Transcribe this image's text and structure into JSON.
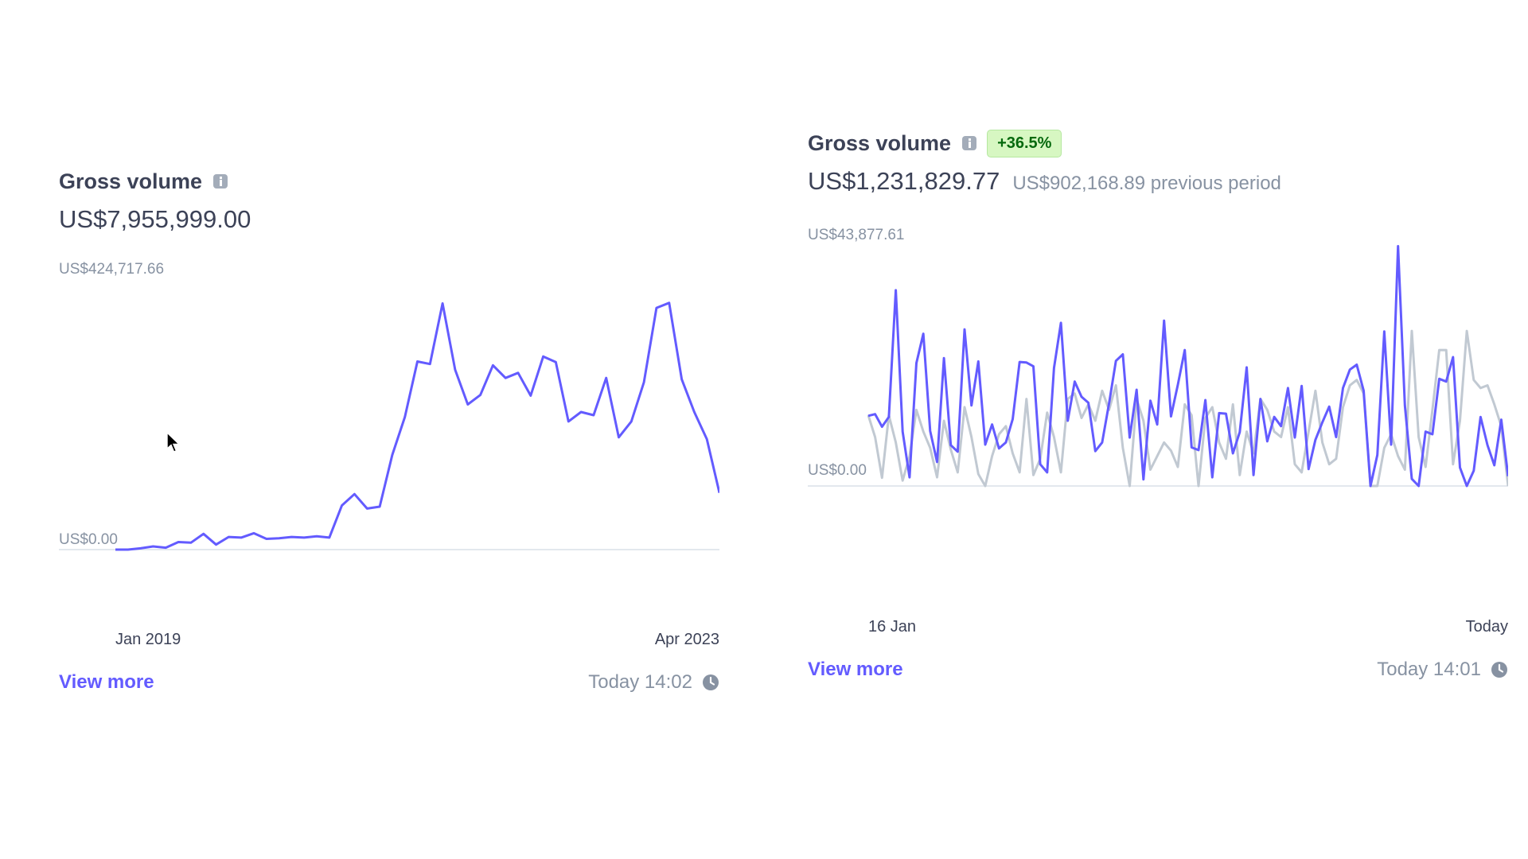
{
  "left_card": {
    "title": "Gross volume",
    "amount": "US$7,955,999.00",
    "view_more": "View more",
    "updated": "Today 14:02",
    "clock_icon": "clock-icon",
    "info_icon": "info-icon"
  },
  "right_card": {
    "title": "Gross volume",
    "badge": "+36.5%",
    "amount": "US$1,231,829.77",
    "previous": "US$902,168.89 previous period",
    "view_more": "View more",
    "updated": "Today 14:01",
    "clock_icon": "clock-icon",
    "info_icon": "info-icon"
  },
  "colors": {
    "accent": "#635bff",
    "previous_series": "#c1c9d2",
    "badge_bg": "#d7f7c2",
    "badge_text": "#05690d"
  },
  "chart_data": [
    {
      "type": "line",
      "title": "",
      "ymax_label": "US$424,717.66",
      "ymin_label": "US$0.00",
      "xlabels": [
        "Jan 2019",
        "Apr 2023"
      ],
      "ylim": [
        0,
        424717.66
      ],
      "series": [
        {
          "values": [
            0,
            0,
            2000,
            5000,
            3000,
            12000,
            11000,
            25000,
            8000,
            20000,
            19000,
            26000,
            17000,
            18000,
            20000,
            19000,
            21000,
            19000,
            70000,
            88000,
            65000,
            68000,
            150000,
            210000,
            298000,
            294000,
            390000,
            285000,
            230000,
            245000,
            292000,
            272000,
            280000,
            244000,
            306000,
            297000,
            203000,
            218000,
            213000,
            272000,
            178000,
            203000,
            265000,
            383000,
            391000,
            270000,
            218000,
            175000,
            90000
          ]
        }
      ]
    },
    {
      "type": "line",
      "title": "",
      "ymax_label": "US$43,877.61",
      "ymin_label": "US$0.00",
      "xlabels": [
        "16 Jan",
        "Today"
      ],
      "ylim": [
        0,
        43877.61
      ],
      "series": [
        {
          "values": [
            12900,
            13200,
            10900,
            12700,
            36000,
            10000,
            1600,
            22600,
            28000,
            10100,
            4400,
            23500,
            7500,
            6300,
            28800,
            14800,
            22900,
            7600,
            11300,
            6900,
            8000,
            12300,
            22800,
            22700,
            22000,
            4000,
            2500,
            21700,
            30000,
            12000,
            19200,
            16400,
            15300,
            6400,
            8000,
            15200,
            23000,
            24200,
            8900,
            17700,
            1200,
            15700,
            11300,
            30400,
            12800,
            18600,
            25000,
            7100,
            6600,
            15800,
            1600,
            13400,
            13300,
            6000,
            9900,
            21800,
            2000,
            16000,
            8200,
            12700,
            11000,
            18000,
            8900,
            18400,
            3100,
            8500,
            11700,
            14600,
            9000,
            18000,
            21400,
            22300,
            17500,
            0,
            5700,
            28400,
            7600,
            44100,
            14800,
            1300,
            0,
            10000,
            9500,
            19700,
            19200,
            23700,
            3400,
            0,
            2800,
            12700,
            7500,
            3800,
            12200,
            1800
          ]
        },
        {
          "values": [
            13000,
            9000,
            1500,
            13000,
            8000,
            1000,
            5500,
            14000,
            10000,
            7000,
            1600,
            12000,
            6700,
            2500,
            14500,
            9000,
            2200,
            0,
            5500,
            9500,
            11000,
            6000,
            2500,
            16000,
            2000,
            5000,
            13500,
            9000,
            2500,
            16000,
            17000,
            12500,
            15000,
            12000,
            17500,
            14000,
            18500,
            7000,
            0,
            16000,
            12000,
            3000,
            5500,
            8000,
            6500,
            3500,
            15000,
            13000,
            0,
            12500,
            14500,
            8000,
            5000,
            15000,
            2000,
            10000,
            6000,
            16000,
            14000,
            10000,
            9000,
            14500,
            4000,
            2500,
            10000,
            17500,
            8000,
            4000,
            5000,
            14500,
            18500,
            19500,
            17000,
            0,
            0,
            7000,
            9500,
            5500,
            3000,
            28500,
            9000,
            3500,
            14000,
            25000,
            25000,
            4000,
            12000,
            28500,
            19500,
            18000,
            18500,
            15000,
            11000,
            0
          ]
        }
      ]
    }
  ]
}
